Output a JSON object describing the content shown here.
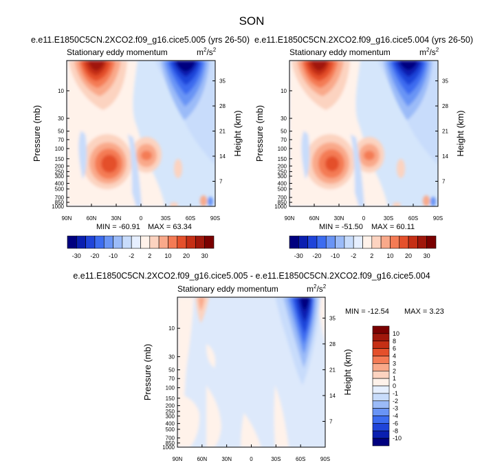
{
  "figure": {
    "title": "SON"
  },
  "chart_data": [
    {
      "type": "contour",
      "panel": "top-left",
      "case_title": "e.e11.E1850C5CN.2XCO2.f09_g16.cice5.005 (yrs 26-50)",
      "title": "Stationary eddy momentum",
      "units_base": "m",
      "units_exp1": "2",
      "units_sep": "/s",
      "units_exp2": "2",
      "xlabel": "",
      "ylabel": "Pressure (mb)",
      "y2label": "Height (km)",
      "x_ticks": [
        "90N",
        "60N",
        "30N",
        "0",
        "30S",
        "60S",
        "90S"
      ],
      "x_tick_lats": [
        90,
        60,
        30,
        0,
        -30,
        -60,
        -90
      ],
      "p_ticks": [
        10,
        30,
        50,
        70,
        100,
        150,
        200,
        250,
        300,
        400,
        500,
        700,
        850,
        1000
      ],
      "h_ticks": [
        35,
        28,
        21,
        14,
        7
      ],
      "ylim_mb": [
        3,
        1000
      ],
      "min_label": "MIN = -60.91",
      "max_label": "MAX =  63.34",
      "min": -60.91,
      "max": 63.34,
      "colorbar": {
        "orientation": "horizontal",
        "labels": [
          "-30",
          "-20",
          "-10",
          "-2",
          "2",
          "10",
          "20",
          "30"
        ]
      }
    },
    {
      "type": "contour",
      "panel": "top-right",
      "case_title": "e.e11.E1850C5CN.2XCO2.f09_g16.cice5.004 (yrs 26-50)",
      "title": "Stationary eddy momentum",
      "units_base": "m",
      "units_exp1": "2",
      "units_sep": "/s",
      "units_exp2": "2",
      "ylabel": "Pressure (mb)",
      "y2label": "Height (km)",
      "x_ticks": [
        "90N",
        "60N",
        "30N",
        "0",
        "30S",
        "60S",
        "90S"
      ],
      "x_tick_lats": [
        90,
        60,
        30,
        0,
        -30,
        -60,
        -90
      ],
      "p_ticks": [
        10,
        30,
        50,
        70,
        100,
        150,
        200,
        250,
        300,
        400,
        500,
        700,
        850,
        1000
      ],
      "h_ticks": [
        35,
        28,
        21,
        14,
        7
      ],
      "ylim_mb": [
        3,
        1000
      ],
      "min_label": "MIN = -51.50",
      "max_label": "MAX =  60.11",
      "min": -51.5,
      "max": 60.11,
      "colorbar": {
        "orientation": "horizontal",
        "labels": [
          "-30",
          "-20",
          "-10",
          "-2",
          "2",
          "10",
          "20",
          "30"
        ]
      }
    },
    {
      "type": "contour",
      "panel": "bottom-difference",
      "case_title": "e.e11.E1850C5CN.2XCO2.f09_g16.cice5.005 - e.e11.E1850C5CN.2XCO2.f09_g16.cice5.004",
      "title": "Stationary eddy momentum",
      "units_base": "m",
      "units_exp1": "2",
      "units_sep": "/s",
      "units_exp2": "2",
      "ylabel": "Pressure (mb)",
      "y2label": "Height (km)",
      "x_ticks": [
        "90N",
        "60N",
        "30N",
        "0",
        "30S",
        "60S",
        "90S"
      ],
      "x_tick_lats": [
        90,
        60,
        30,
        0,
        -30,
        -60,
        -90
      ],
      "p_ticks": [
        10,
        30,
        50,
        70,
        100,
        150,
        200,
        250,
        300,
        400,
        500,
        700,
        850,
        1000
      ],
      "h_ticks": [
        35,
        28,
        21,
        14,
        7
      ],
      "ylim_mb": [
        3,
        1000
      ],
      "min_label": "MIN = -12.54",
      "max_label": "MAX =   3.23",
      "min": -12.54,
      "max": 3.23,
      "colorbar": {
        "orientation": "vertical",
        "labels": [
          "10",
          "8",
          "6",
          "4",
          "3",
          "2",
          "1",
          "0",
          "-1",
          "-2",
          "-3",
          "-4",
          "-6",
          "-8",
          "-10"
        ]
      }
    }
  ],
  "colors": {
    "full_field": [
      "#00007f",
      "#0a1fb0",
      "#1f44d9",
      "#3c6cf0",
      "#6994f5",
      "#9bbbf8",
      "#c8dcfb",
      "#e6efff",
      "#fff2ea",
      "#fcd3c0",
      "#f9a98a",
      "#f47b55",
      "#e4502b",
      "#c52f15",
      "#a0170b",
      "#7a0000"
    ],
    "difference": [
      "#7a0000",
      "#a0170b",
      "#c52f15",
      "#e4502b",
      "#f47b55",
      "#f9a98a",
      "#fcd3c0",
      "#fff2ea",
      "#e6efff",
      "#c8dcfb",
      "#9bbbf8",
      "#6994f5",
      "#3c6cf0",
      "#1f44d9",
      "#0a1fb0",
      "#00007f"
    ],
    "plot_background": "#d5e6fb",
    "difference_background": "#dde9fb"
  }
}
